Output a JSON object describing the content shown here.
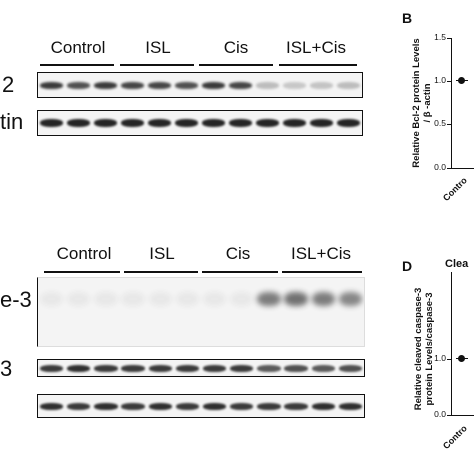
{
  "figure": {
    "top_group_labels": [
      "Control",
      "ISL",
      "Cis",
      "ISL+Cis"
    ],
    "top_rows": [
      "2",
      "tin"
    ],
    "bottom_group_labels": [
      "Control",
      "ISL",
      "Cis",
      "ISL+Cis"
    ],
    "bottom_rows": [
      "e-3",
      "3"
    ]
  },
  "panel_b": {
    "letter": "B",
    "ylabel_line1": "Relative Bcl-2  protein Levels",
    "ylabel_line2": "/ β -actin",
    "y_ticks": [
      "0.0",
      "0.5",
      "1.0",
      "1.5"
    ],
    "x_label": "Contro"
  },
  "panel_d": {
    "letter": "D",
    "title": "Clea",
    "ylabel_line1": "Relative cleaved caspase-3",
    "ylabel_line2": "protein Levels/caspase-3",
    "y_ticks": [
      "0.0",
      "0.5",
      "1.0",
      "1.5"
    ],
    "x_label": "Contro"
  },
  "chart_data": [
    {
      "type": "scatter",
      "title": "",
      "ylabel": "Relative Bcl-2  protein Levels / β -actin",
      "categories": [
        "Control"
      ],
      "values": [
        1.0
      ],
      "ylim": [
        0,
        1.5
      ]
    },
    {
      "type": "scatter",
      "title": "Clea",
      "ylabel": "Relative cleaved caspase-3 protein Levels/caspase-3",
      "categories": [
        "Control"
      ],
      "values": [
        1.0
      ],
      "ylim": [
        0,
        1.5
      ]
    }
  ],
  "colors": {
    "band_dark": "#1a1a1a",
    "band_faint": "#8a8a8a",
    "background": "#ffffff"
  }
}
